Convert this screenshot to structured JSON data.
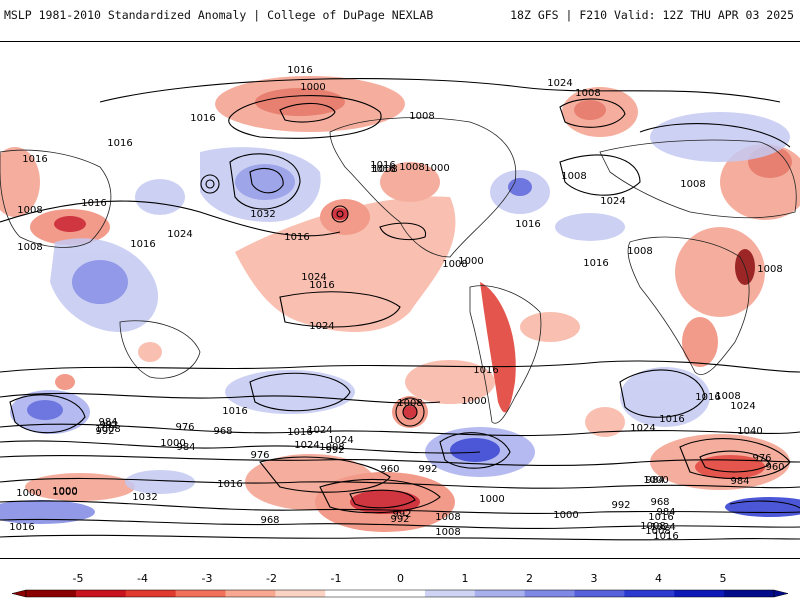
{
  "header": {
    "left_title": "MSLP 1981-2010 Standardized Anomaly | College of DuPage NEXLAB",
    "right_title": "18Z GFS | F210 Valid: 12Z THU APR 03 2025"
  },
  "colorbar": {
    "ticks": [
      "-5",
      "-4",
      "-3",
      "-2",
      "-1",
      "0",
      "1",
      "2",
      "3",
      "4",
      "5"
    ],
    "colors": [
      "#8b0000",
      "#c8141e",
      "#e0392e",
      "#f0705a",
      "#f8a890",
      "#fbd3c4",
      "#ffffff",
      "#ffffff",
      "#cfd4f5",
      "#a9b0ee",
      "#7f88e4",
      "#5560da",
      "#2c3ad0",
      "#0c1ab8",
      "#000c8a"
    ],
    "negative_color": "#e8434a",
    "positive_color": "#6a72e0"
  },
  "isobar_labels": [
    "1016",
    "1000",
    "1016",
    "1008",
    "1016",
    "1016",
    "1008",
    "1016",
    "1016",
    "1008",
    "1000",
    "1024",
    "1016",
    "1024",
    "1008",
    "1032",
    "1024",
    "1016",
    "1024",
    "1008",
    "1016",
    "1024",
    "1016",
    "1008",
    "1008",
    "1008",
    "1008",
    "1008",
    "1016",
    "1016",
    "1016",
    "1024",
    "1016",
    "1008",
    "1000",
    "1008",
    "1016",
    "1000",
    "1024",
    "1024",
    "1016",
    "1008",
    "992",
    "1016",
    "1024",
    "1008",
    "1000",
    "992",
    "992",
    "984",
    "976",
    "984",
    "968",
    "976",
    "992",
    "1016",
    "1032",
    "1000",
    "992",
    "1008",
    "1008",
    "960",
    "984",
    "968",
    "992",
    "1000",
    "1000",
    "1000",
    "992",
    "1016",
    "1024",
    "1008",
    "1016",
    "1040",
    "976",
    "984",
    "960",
    "968",
    "1008",
    "1000",
    "984",
    "1008",
    "1016",
    "1024",
    "1000"
  ]
}
